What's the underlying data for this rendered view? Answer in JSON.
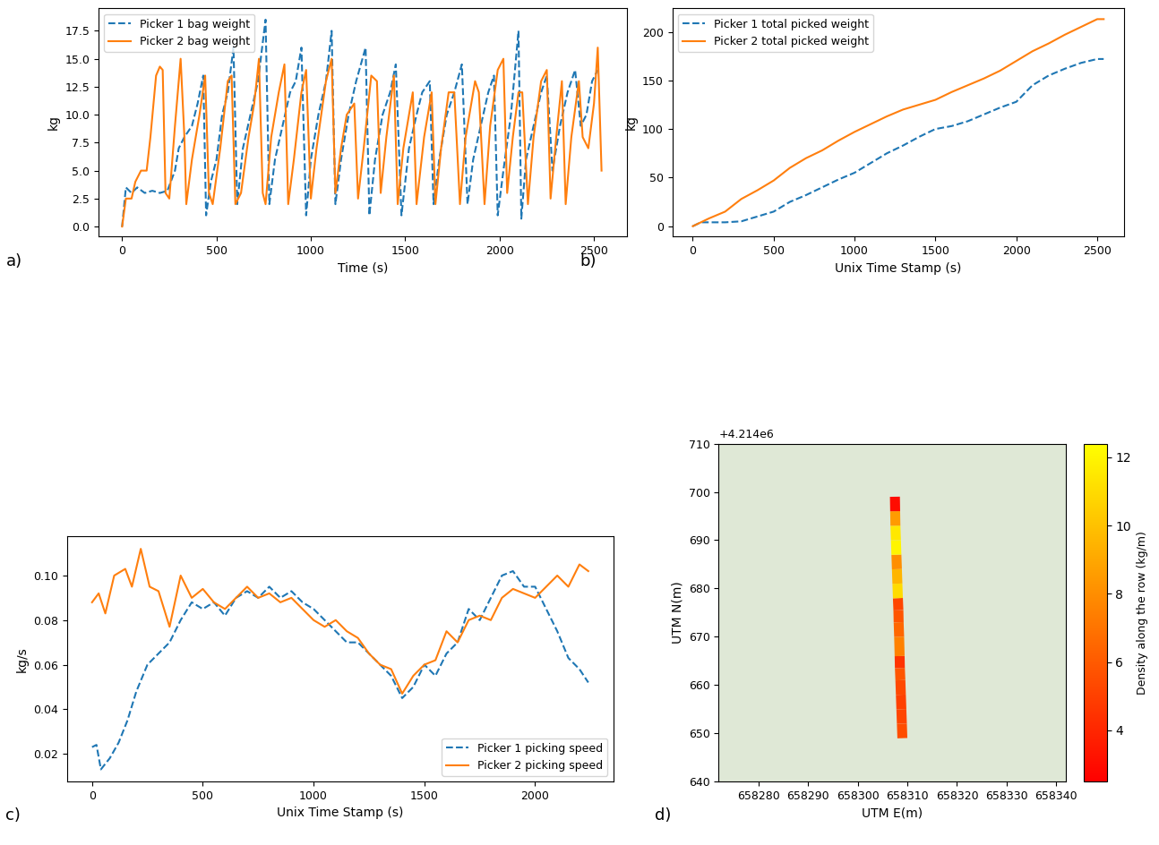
{
  "chart_data": [
    {
      "type": "line",
      "annotations": [
        "a)"
      ],
      "xlabel": "Time (s)",
      "ylabel": "kg",
      "legend": "upper left",
      "xlim": [
        -125,
        2675
      ],
      "ylim": [
        -0.9,
        19.5
      ],
      "xticks": [
        0,
        500,
        1000,
        1500,
        2000,
        2500
      ],
      "yticks": [
        {
          "value": 0,
          "label": "0.0"
        },
        {
          "value": 2.5,
          "label": "2.5"
        },
        {
          "value": 5,
          "label": "5.0"
        },
        {
          "value": 7.5,
          "label": "7.5"
        },
        {
          "value": 10,
          "label": "10.0"
        },
        {
          "value": 12.5,
          "label": "12.5"
        },
        {
          "value": 15,
          "label": "15.0"
        },
        {
          "value": 17.5,
          "label": "17.5"
        }
      ],
      "series": [
        {
          "name": "Picker 1 bag weight",
          "color": "#1f77b4",
          "line_style": "dashed",
          "x": [
            0,
            20,
            50,
            80,
            120,
            160,
            200,
            240,
            280,
            300,
            330,
            370,
            400,
            430,
            445,
            470,
            500,
            530,
            560,
            590,
            610,
            640,
            680,
            720,
            760,
            780,
            810,
            850,
            890,
            920,
            950,
            975,
            1000,
            1040,
            1080,
            1110,
            1130,
            1160,
            1200,
            1240,
            1290,
            1310,
            1340,
            1380,
            1420,
            1450,
            1480,
            1520,
            1560,
            1590,
            1630,
            1650,
            1680,
            1720,
            1760,
            1800,
            1830,
            1860,
            1900,
            1940,
            1970,
            1990,
            2020,
            2060,
            2100,
            2115,
            2140,
            2180,
            2220,
            2250,
            2280,
            2320,
            2360,
            2400,
            2430,
            2460,
            2490,
            2520
          ],
          "values": [
            0,
            3.5,
            3,
            3.5,
            3,
            3.2,
            3,
            3.2,
            5,
            7,
            8,
            9,
            11,
            13.5,
            1,
            4,
            6,
            10,
            12,
            16,
            2,
            7,
            10,
            13,
            18.5,
            2,
            6,
            9,
            12,
            13,
            16,
            1,
            6,
            10,
            13,
            17.5,
            2,
            6,
            10,
            13,
            16,
            1,
            6,
            10,
            12,
            14.5,
            1,
            7,
            10,
            12,
            13,
            2,
            6,
            10,
            12,
            14.5,
            2,
            6,
            9,
            12,
            13.5,
            1,
            5,
            10,
            17.5,
            0.7,
            6,
            9,
            12,
            13.5,
            5,
            9,
            12,
            14,
            9,
            10,
            13,
            14
          ]
        },
        {
          "name": "Picker 2 bag weight",
          "color": "#ff7f0e",
          "line_style": "solid",
          "x": [
            0,
            20,
            50,
            70,
            100,
            130,
            150,
            180,
            200,
            215,
            230,
            250,
            280,
            310,
            330,
            340,
            370,
            410,
            440,
            460,
            480,
            520,
            560,
            580,
            600,
            630,
            670,
            700,
            725,
            745,
            760,
            790,
            830,
            860,
            880,
            910,
            950,
            975,
            1000,
            1030,
            1080,
            1110,
            1130,
            1160,
            1190,
            1230,
            1250,
            1280,
            1320,
            1350,
            1370,
            1400,
            1440,
            1460,
            1490,
            1520,
            1540,
            1560,
            1600,
            1640,
            1660,
            1690,
            1730,
            1760,
            1790,
            1820,
            1870,
            1890,
            1920,
            1950,
            1990,
            2020,
            2040,
            2070,
            2100,
            2120,
            2150,
            2180,
            2220,
            2250,
            2270,
            2300,
            2330,
            2350,
            2380,
            2420,
            2440,
            2470,
            2500,
            2520,
            2540
          ],
          "values": [
            0,
            2.5,
            2.5,
            4,
            5,
            5,
            8,
            13.5,
            14.3,
            14,
            3,
            2.5,
            9,
            15,
            8,
            2,
            6,
            10,
            13.5,
            3,
            2,
            7,
            13,
            13.5,
            2,
            3,
            8,
            11,
            15,
            3,
            2,
            8,
            12,
            14.5,
            2,
            6,
            12,
            14,
            2.5,
            7,
            13,
            15,
            3,
            7,
            10,
            11,
            2.5,
            7,
            13.5,
            13,
            3,
            8,
            13.5,
            2,
            7,
            10,
            12,
            2,
            8,
            12,
            2,
            7,
            12,
            12,
            2,
            8,
            13,
            12,
            2,
            9,
            14,
            15,
            3,
            8,
            12,
            12,
            2,
            8,
            13,
            14,
            2.5,
            8,
            13,
            2,
            8,
            13,
            8,
            7,
            11,
            16,
            5
          ]
        }
      ]
    },
    {
      "type": "line",
      "annotations": [
        "b)"
      ],
      "xlabel": "Unix Time Stamp (s)",
      "ylabel": "kg",
      "legend": "upper left",
      "xlim": [
        -127,
        2667
      ],
      "ylim": [
        -10.7,
        224
      ],
      "xticks": [
        0,
        500,
        1000,
        1500,
        2000,
        2500
      ],
      "yticks": [
        0,
        50,
        100,
        150,
        200
      ],
      "series": [
        {
          "name": "Picker 1 total picked weight",
          "color": "#1f77b4",
          "line_style": "dashed",
          "x": [
            0,
            50,
            100,
            200,
            300,
            400,
            500,
            600,
            700,
            800,
            900,
            1000,
            1100,
            1200,
            1300,
            1400,
            1500,
            1600,
            1700,
            1800,
            1900,
            2000,
            2100,
            2200,
            2300,
            2400,
            2500,
            2540
          ],
          "values": [
            0,
            4,
            4,
            4,
            5,
            10,
            15,
            25,
            32,
            40,
            48,
            55,
            65,
            75,
            83,
            92,
            100,
            103,
            108,
            115,
            122,
            128,
            145,
            155,
            162,
            168,
            172,
            172
          ]
        },
        {
          "name": "Picker 2 total picked weight",
          "color": "#ff7f0e",
          "line_style": "solid",
          "x": [
            0,
            100,
            200,
            300,
            400,
            500,
            600,
            700,
            800,
            900,
            1000,
            1100,
            1200,
            1300,
            1400,
            1500,
            1600,
            1700,
            1800,
            1900,
            2000,
            2100,
            2200,
            2300,
            2400,
            2500,
            2540
          ],
          "values": [
            0,
            8,
            15,
            28,
            37,
            47,
            60,
            70,
            78,
            88,
            97,
            105,
            113,
            120,
            125,
            130,
            138,
            145,
            152,
            160,
            170,
            180,
            188,
            197,
            205,
            213,
            213
          ]
        }
      ]
    },
    {
      "type": "line",
      "annotations": [
        "c)"
      ],
      "xlabel": "Unix Time Stamp (s)",
      "ylabel": "kg/s",
      "legend": "lower right",
      "xlim": [
        -112,
        2352
      ],
      "ylim": [
        0.0075,
        0.1175
      ],
      "xticks": [
        0,
        500,
        1000,
        1500,
        2000
      ],
      "yticks": [
        0.02,
        0.04,
        0.06,
        0.08,
        {
          "value": 0.1,
          "label": "0.10"
        }
      ],
      "series": [
        {
          "name": "Picker 1 picking speed",
          "color": "#1f77b4",
          "line_style": "dashed",
          "x": [
            0,
            20,
            40,
            80,
            120,
            160,
            200,
            250,
            300,
            350,
            400,
            450,
            500,
            550,
            600,
            650,
            700,
            750,
            800,
            850,
            900,
            950,
            1000,
            1050,
            1100,
            1150,
            1200,
            1250,
            1300,
            1350,
            1400,
            1450,
            1500,
            1550,
            1600,
            1650,
            1700,
            1750,
            1800,
            1850,
            1900,
            1950,
            2000,
            2050,
            2100,
            2150,
            2200,
            2240
          ],
          "values": [
            0.023,
            0.024,
            0.013,
            0.018,
            0.025,
            0.035,
            0.048,
            0.06,
            0.065,
            0.07,
            0.08,
            0.088,
            0.085,
            0.088,
            0.082,
            0.09,
            0.093,
            0.09,
            0.095,
            0.09,
            0.093,
            0.088,
            0.085,
            0.08,
            0.075,
            0.07,
            0.07,
            0.065,
            0.06,
            0.055,
            0.045,
            0.05,
            0.06,
            0.055,
            0.065,
            0.07,
            0.085,
            0.08,
            0.09,
            0.1,
            0.102,
            0.095,
            0.095,
            0.085,
            0.075,
            0.063,
            0.058,
            0.052
          ]
        },
        {
          "name": "Picker 2 picking speed",
          "color": "#ff7f0e",
          "line_style": "solid",
          "x": [
            0,
            30,
            60,
            100,
            150,
            180,
            220,
            260,
            300,
            350,
            400,
            450,
            500,
            550,
            600,
            650,
            700,
            750,
            800,
            850,
            900,
            950,
            1000,
            1050,
            1100,
            1150,
            1200,
            1250,
            1300,
            1350,
            1400,
            1450,
            1500,
            1550,
            1600,
            1650,
            1700,
            1750,
            1800,
            1850,
            1900,
            1950,
            2000,
            2050,
            2100,
            2150,
            2200,
            2240
          ],
          "values": [
            0.088,
            0.092,
            0.083,
            0.1,
            0.103,
            0.095,
            0.112,
            0.095,
            0.093,
            0.077,
            0.1,
            0.09,
            0.094,
            0.088,
            0.085,
            0.09,
            0.095,
            0.09,
            0.092,
            0.088,
            0.09,
            0.085,
            0.08,
            0.077,
            0.08,
            0.075,
            0.072,
            0.065,
            0.06,
            0.058,
            0.047,
            0.055,
            0.06,
            0.062,
            0.075,
            0.07,
            0.08,
            0.082,
            0.08,
            0.09,
            0.094,
            0.092,
            0.09,
            0.095,
            0.1,
            0.095,
            0.105,
            0.102
          ]
        }
      ]
    },
    {
      "type": "map",
      "annotations": [
        "d)",
        "+4.214e6"
      ],
      "xlabel": "UTM E(m)",
      "ylabel": "UTM N(m)",
      "xlim": [
        658272,
        658342
      ],
      "ylim": [
        640,
        710
      ],
      "xticks": [
        658280,
        658290,
        658300,
        658310,
        658320,
        658330,
        658340
      ],
      "yticks": [
        640,
        650,
        660,
        670,
        680,
        690,
        700,
        710
      ],
      "x": [
        658309.0,
        658308.9,
        658308.8,
        658308.7,
        658308.6,
        658308.5,
        658308.45,
        658308.35,
        658308.25,
        658308.2,
        658308.1,
        658308.0,
        658307.9,
        658307.8,
        658307.7,
        658307.6,
        658307.55,
        658307.5
      ],
      "y": [
        649,
        652,
        655,
        658,
        661,
        663.5,
        666,
        670,
        673,
        675.5,
        678,
        681,
        684,
        687,
        690,
        693,
        696,
        699
      ],
      "density": [
        5.5,
        5.2,
        5.0,
        5.3,
        5.8,
        4.5,
        7.5,
        6.5,
        5.8,
        5.2,
        11,
        9.5,
        8,
        12,
        11.5,
        8.5,
        3
      ],
      "colorbar": {
        "label": "Density along the row (kg/m)",
        "range": [
          2.5,
          12.4
        ],
        "ticks": [
          4,
          6,
          8,
          10,
          12
        ]
      }
    }
  ]
}
